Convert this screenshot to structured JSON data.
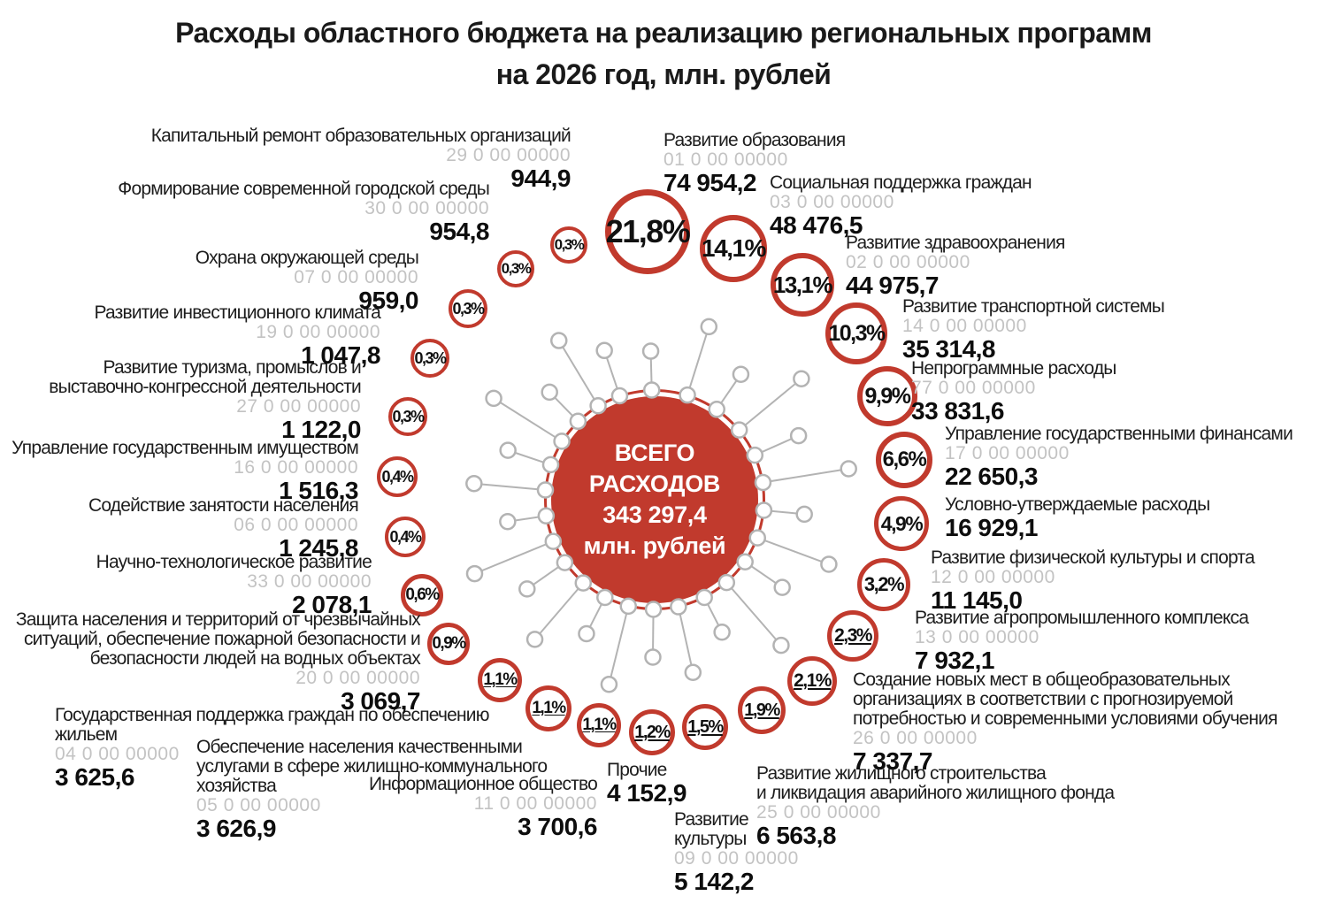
{
  "title": {
    "line1": "Расходы областного бюджета на реализацию региональных программ",
    "line2": "на 2026 год, млн. рублей"
  },
  "center": {
    "label": "ВСЕГО РАСХОДОВ",
    "value": "343 297,4",
    "units": "млн. рублей"
  },
  "colors": {
    "accent_red": "#c13a2d",
    "spoke_gray": "#b3b3b3",
    "code_gray": "#c3c3c3",
    "text_black": "#1a1a1a"
  },
  "chart_data": {
    "type": "bubble",
    "title": "Расходы областного бюджета на реализацию региональных программ на 2026 год, млн. рублей",
    "units": "млн. рублей",
    "total": {
      "label": "ВСЕГО РАСХОДОВ",
      "value": "343 297,4"
    },
    "items": [
      {
        "name": "Развитие образования",
        "code": "01 0 00 00000",
        "value": "74 954,2",
        "percent": "21,8%"
      },
      {
        "name": "Социальная поддержка граждан",
        "code": "03 0 00 00000",
        "value": "48 476,5",
        "percent": "14,1%"
      },
      {
        "name": "Развитие здравоохранения",
        "code": "02 0 00 00000",
        "value": "44 975,7",
        "percent": "13,1%"
      },
      {
        "name": "Развитие транспортной системы",
        "code": "14 0 00 00000",
        "value": "35 314,8",
        "percent": "10,3%"
      },
      {
        "name": "Непрограммные расходы",
        "code": "77 0 00 00000",
        "value": "33 831,6",
        "percent": "9,9%"
      },
      {
        "name": "Управление государственными финансами",
        "code": "17 0 00 00000",
        "value": "22 650,3",
        "percent": "6,6%"
      },
      {
        "name": "Условно-утверждаемые расходы",
        "code": "",
        "value": "16 929,1",
        "percent": "4,9%"
      },
      {
        "name": "Развитие физической культуры и спорта",
        "code": "12 0 00 00000",
        "value": "11 145,0",
        "percent": "3,2%"
      },
      {
        "name": "Развитие агропромышленного комплекса",
        "code": "13 0 00 00000",
        "value": "7 932,1",
        "percent": "2,3%"
      },
      {
        "name": "Создание новых мест в общеобразовательных\nорганизациях  в соответствии с прогнозируемой\nпотребностью и современными условиями обучения",
        "code": "26 0 00 00000",
        "value": "7 337,7",
        "percent": "2,1%"
      },
      {
        "name": "Развитие жилищного строительства\nи ликвидация аварийного жилищного фонда",
        "code": "25 0 00 00000",
        "value": "6 563,8",
        "percent": "1,9%"
      },
      {
        "name": "Развитие\nкультуры",
        "code": "09 0 00 00000",
        "value": "5 142,2",
        "percent": "1,5%"
      },
      {
        "name": "Прочие",
        "code": "",
        "value": "4 152,9",
        "percent": "1,2%"
      },
      {
        "name": "Информационное общество",
        "code": "11 0 00 00000",
        "value": "3 700,6",
        "percent": "1,1%"
      },
      {
        "name": "Обеспечение населения  качественными\nуслугами в сфере жилищно-коммунального\nхозяйства",
        "code": "05 0 00 00000",
        "value": "3 626,9",
        "percent": "1,1%"
      },
      {
        "name": "Государственная поддержка граждан по обеспечению\nжильем",
        "code": "04 0 00 00000",
        "value": "3 625,6",
        "percent": "1,1%"
      },
      {
        "name": "Защита населения и территорий от чрезвычайных\nситуаций, обеспечение пожарной безопасности и\nбезопасности людей на водных объектах",
        "code": "20 0 00 00000",
        "value": "3 069,7",
        "percent": "0,9%"
      },
      {
        "name": "Научно-технологическое развитие",
        "code": "33 0 00 00000",
        "value": "2 078,1",
        "percent": "0,6%"
      },
      {
        "name": "Содействие занятости населения",
        "code": "06 0 00 00000",
        "value": "1 245,8",
        "percent": "0,4%"
      },
      {
        "name": "Управление государственным имуществом",
        "code": "16 0 00 00000",
        "value": "1 516,3",
        "percent": "0,4%"
      },
      {
        "name": "Развитие туризма, промыслов и\nвыставочно-конгрессной деятельности",
        "code": "27 0 00 00000",
        "value": "1 122,0",
        "percent": "0,3%"
      },
      {
        "name": "Развитие инвестиционного климата",
        "code": "19 0 00 00000",
        "value": "1 047,8",
        "percent": "0,3%"
      },
      {
        "name": "Охрана окружающей среды",
        "code": "07 0 00 00000",
        "value": "959,0",
        "percent": "0,3%"
      },
      {
        "name": "Формирование современной городской среды",
        "code": "30 0 00 00000",
        "value": "954,8",
        "percent": "0,3%"
      },
      {
        "name": "Капитальный ремонт образовательных организаций",
        "code": "29 0 00 00000",
        "value": "944,9",
        "percent": "0,3%"
      }
    ]
  }
}
